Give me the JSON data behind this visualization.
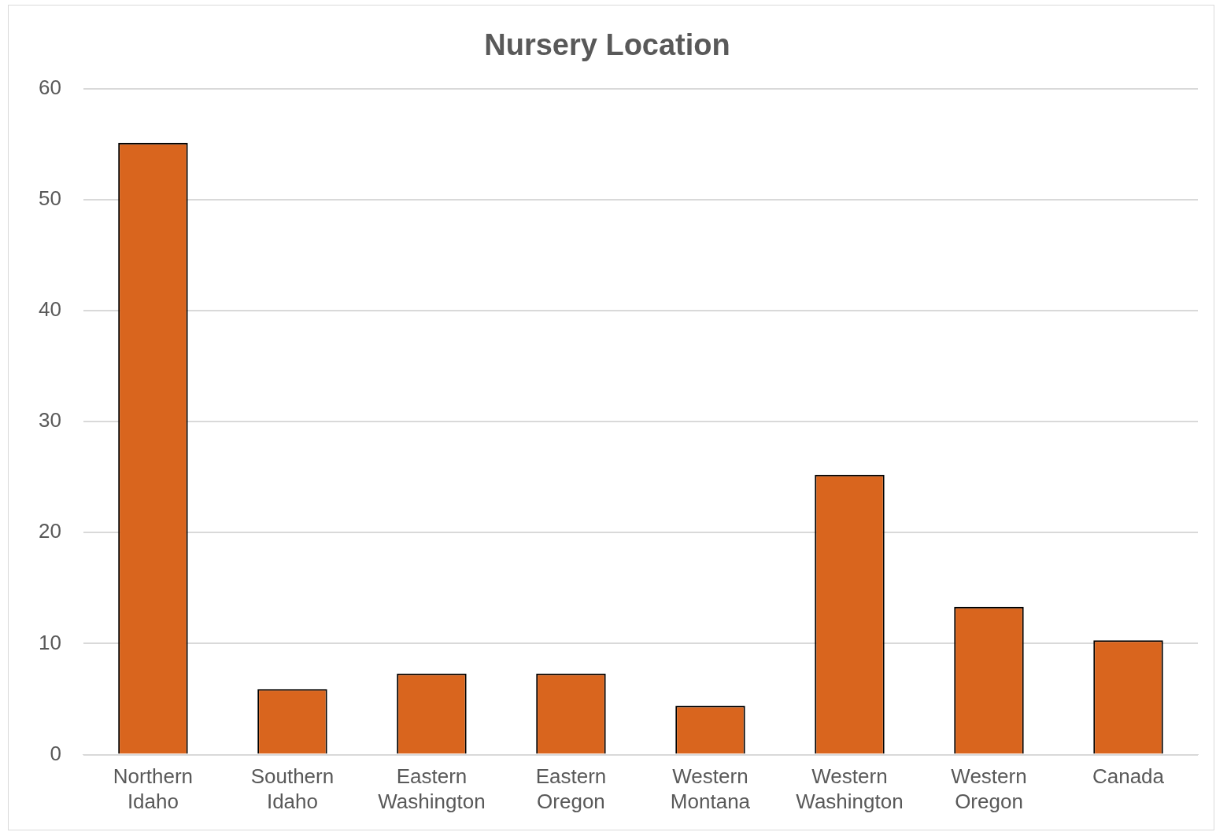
{
  "chart_data": {
    "type": "bar",
    "title": "Nursery Location",
    "categories": [
      "Northern Idaho",
      "Southern Idaho",
      "Eastern Washington",
      "Eastern Oregon",
      "Western Montana",
      "Western Washington",
      "Western Oregon",
      "Canada"
    ],
    "values": [
      55.1,
      5.9,
      7.3,
      7.3,
      4.4,
      25.2,
      13.3,
      10.3
    ],
    "color": "#d9651e",
    "ylim": [
      0,
      60
    ],
    "yticks": [
      0,
      10,
      20,
      30,
      40,
      50,
      60
    ],
    "grid": "y",
    "legend": false
  }
}
